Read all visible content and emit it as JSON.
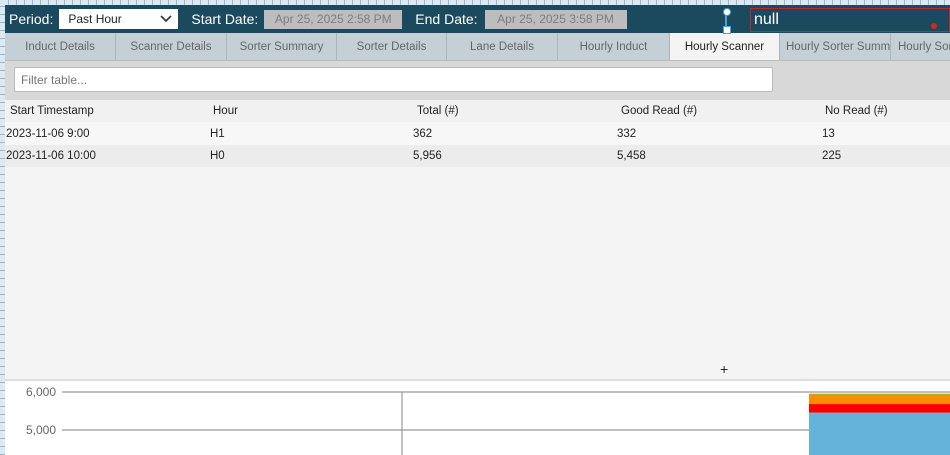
{
  "header": {
    "period_label": "Period:",
    "period_value": "Past Hour",
    "start_label": "Start Date:",
    "start_value": "Apr 25, 2025 2:58 PM",
    "end_label": "End Date:",
    "end_value": "Apr 25, 2025 3:58 PM",
    "null_text": "null"
  },
  "tabs": [
    {
      "label": "Induct Details"
    },
    {
      "label": "Scanner Details"
    },
    {
      "label": "Sorter Summary"
    },
    {
      "label": "Sorter Details"
    },
    {
      "label": "Lane Details"
    },
    {
      "label": "Hourly Induct"
    },
    {
      "label": "Hourly Scanner",
      "active": true
    },
    {
      "label": "Hourly Sorter Summary"
    },
    {
      "label": "Hourly Sorter Details"
    }
  ],
  "filter": {
    "placeholder": "Filter table..."
  },
  "table": {
    "columns": [
      "Start Timestamp",
      "Hour",
      "Total (#)",
      "Good Read (#)",
      "No Read (#)"
    ],
    "rows": [
      [
        "2023-11-06 9:00",
        "H1",
        "362",
        "332",
        "13"
      ],
      [
        "2023-11-06 10:00",
        "H0",
        "5,956",
        "5,458",
        "225"
      ]
    ]
  },
  "chart_data": {
    "type": "bar",
    "stacked": true,
    "y_ticks": [
      "6,000",
      "5,000"
    ],
    "ylim_visible": [
      4350,
      6100
    ],
    "grid": true,
    "series": [
      {
        "color": "#66b3da",
        "values": [
          5458
        ]
      },
      {
        "color": "#ff0000",
        "values": [
          225
        ]
      },
      {
        "color": "#ff8c00",
        "values": [
          250
        ]
      },
      {
        "color": "#66cc33",
        "values": [
          23
        ]
      }
    ]
  }
}
